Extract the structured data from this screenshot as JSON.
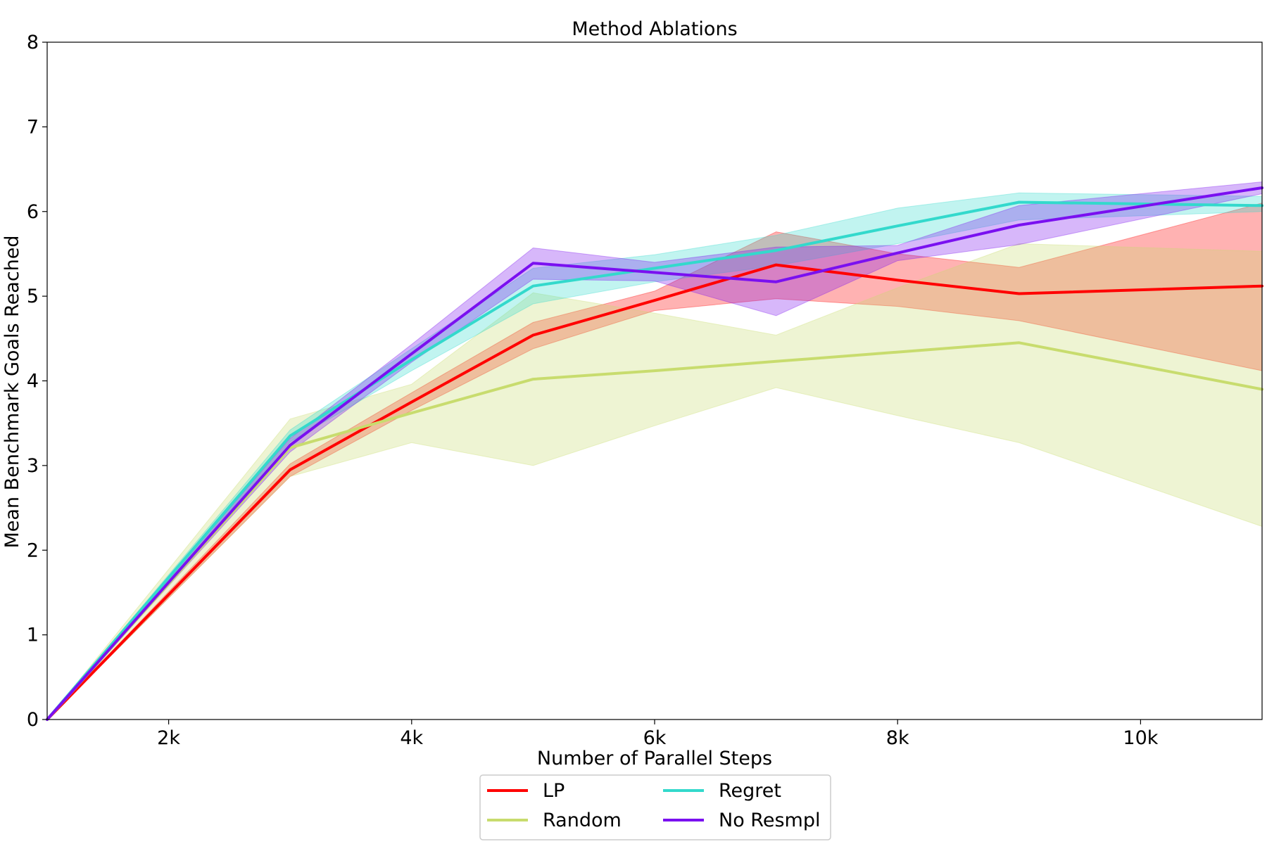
{
  "chart_data": {
    "type": "line",
    "title": "Method Ablations",
    "xlabel": "Number of Parallel Steps",
    "ylabel": "Mean Benchmark Goals Reached",
    "xlim": [
      1000,
      11000
    ],
    "ylim": [
      0,
      8
    ],
    "x_ticks": [
      2000,
      4000,
      6000,
      8000,
      10000
    ],
    "x_tick_labels": [
      "2k",
      "4k",
      "6k",
      "8k",
      "10k"
    ],
    "y_ticks": [
      0,
      1,
      2,
      3,
      4,
      5,
      6,
      7,
      8
    ],
    "y_tick_labels": [
      "0",
      "1",
      "2",
      "3",
      "4",
      "5",
      "6",
      "7",
      "8"
    ],
    "grid": false,
    "legend_position": "bottom-center",
    "x": [
      1000,
      3000,
      4000,
      5000,
      6000,
      7000,
      8000,
      9000,
      11000
    ],
    "series": [
      {
        "name": "LP",
        "color": "#ff0000",
        "values": [
          0,
          2.95,
          3.75,
          4.54,
          4.95,
          5.37,
          5.19,
          5.03,
          5.12
        ],
        "lower": [
          0,
          2.87,
          3.65,
          4.38,
          4.83,
          4.97,
          4.88,
          4.71,
          4.12
        ],
        "upper": [
          0,
          3.02,
          3.86,
          4.69,
          5.06,
          5.76,
          5.5,
          5.34,
          6.1
        ]
      },
      {
        "name": "Random",
        "color": "#c8dc6e",
        "values": [
          0,
          3.21,
          3.62,
          4.02,
          4.12,
          4.23,
          4.34,
          4.45,
          3.9
        ],
        "lower": [
          0,
          2.87,
          3.27,
          3.0,
          3.47,
          3.92,
          3.59,
          3.27,
          2.28
        ],
        "upper": [
          0,
          3.55,
          3.96,
          5.04,
          4.8,
          4.54,
          5.1,
          5.62,
          5.53
        ]
      },
      {
        "name": "Regret",
        "color": "#33d9cc",
        "values": [
          0,
          3.35,
          4.25,
          5.12,
          5.33,
          5.54,
          5.83,
          6.11,
          6.07
        ],
        "lower": [
          0,
          3.28,
          4.12,
          4.91,
          5.17,
          5.36,
          5.62,
          5.9,
          6.0
        ],
        "upper": [
          0,
          3.42,
          4.38,
          5.33,
          5.49,
          5.72,
          6.04,
          6.22,
          6.18
        ]
      },
      {
        "name": "No Resmpl",
        "color": "#7a10f0",
        "values": [
          0,
          3.24,
          4.32,
          5.39,
          5.28,
          5.17,
          5.51,
          5.84,
          6.28
        ],
        "lower": [
          0,
          3.16,
          4.22,
          5.2,
          5.18,
          4.77,
          5.42,
          5.61,
          6.21
        ],
        "upper": [
          0,
          3.32,
          4.43,
          5.57,
          5.4,
          5.58,
          5.6,
          6.07,
          6.35
        ]
      }
    ],
    "legend_layout": [
      [
        "LP",
        "Regret"
      ],
      [
        "Random",
        "No Resmpl"
      ]
    ]
  }
}
